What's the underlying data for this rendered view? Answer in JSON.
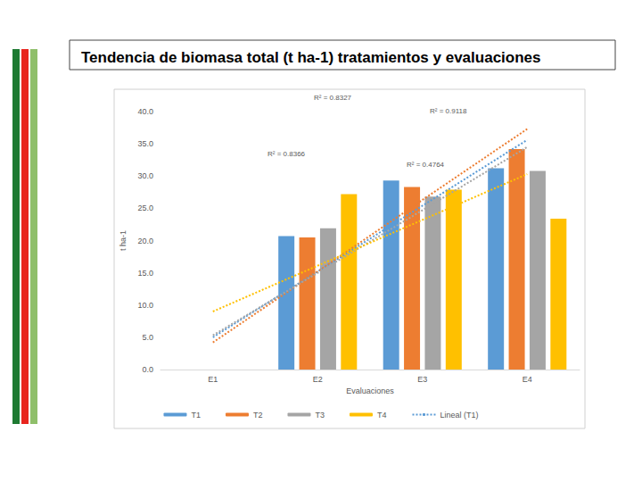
{
  "chart_data": {
    "type": "bar",
    "title": "Tendencia de biomasa total (t ha-1) tratamientos y evaluaciones",
    "x_label": "Evaluaciones",
    "y_label": "t ha-1",
    "categories": [
      "E1",
      "E2",
      "E3",
      "E4"
    ],
    "series": [
      {
        "name": "T1",
        "color": "#5b9bd5",
        "values": [
          0,
          20.7,
          29.3,
          31.2
        ],
        "trend": [
          5.0,
          15.2,
          25.4,
          35.6
        ],
        "trend_name": "Lineal (T1)"
      },
      {
        "name": "T2",
        "color": "#ed7d31",
        "values": [
          0,
          20.5,
          28.3,
          34.2
        ],
        "trend": [
          4.2,
          15.2,
          26.3,
          37.3
        ]
      },
      {
        "name": "T3",
        "color": "#a5a5a5",
        "values": [
          0,
          21.9,
          26.8,
          30.8
        ],
        "trend": [
          5.3,
          15.0,
          24.7,
          34.5
        ]
      },
      {
        "name": "T4",
        "color": "#ffc000",
        "values": [
          0,
          27.2,
          27.9,
          23.4
        ],
        "trend": [
          9.0,
          16.1,
          23.2,
          30.3
        ]
      }
    ],
    "annotations": [
      "R² = 0.8327",
      "R² = 0.9118",
      "R² = 0.8366",
      "R² = 0.4764"
    ],
    "ylim": [
      0,
      40
    ],
    "yticks": [
      {
        "value": 0,
        "label": "0.0"
      },
      {
        "value": 5,
        "label": "5.0"
      },
      {
        "value": 10,
        "label": "10.0"
      },
      {
        "value": 15,
        "label": "15.0"
      },
      {
        "value": 20,
        "label": "20.0"
      },
      {
        "value": 25,
        "label": "25.0"
      },
      {
        "value": 30,
        "label": "30.0"
      },
      {
        "value": 35,
        "label": "35.0"
      },
      {
        "value": 40,
        "label": "40.0"
      }
    ],
    "grid": false,
    "legend": "bottom"
  }
}
